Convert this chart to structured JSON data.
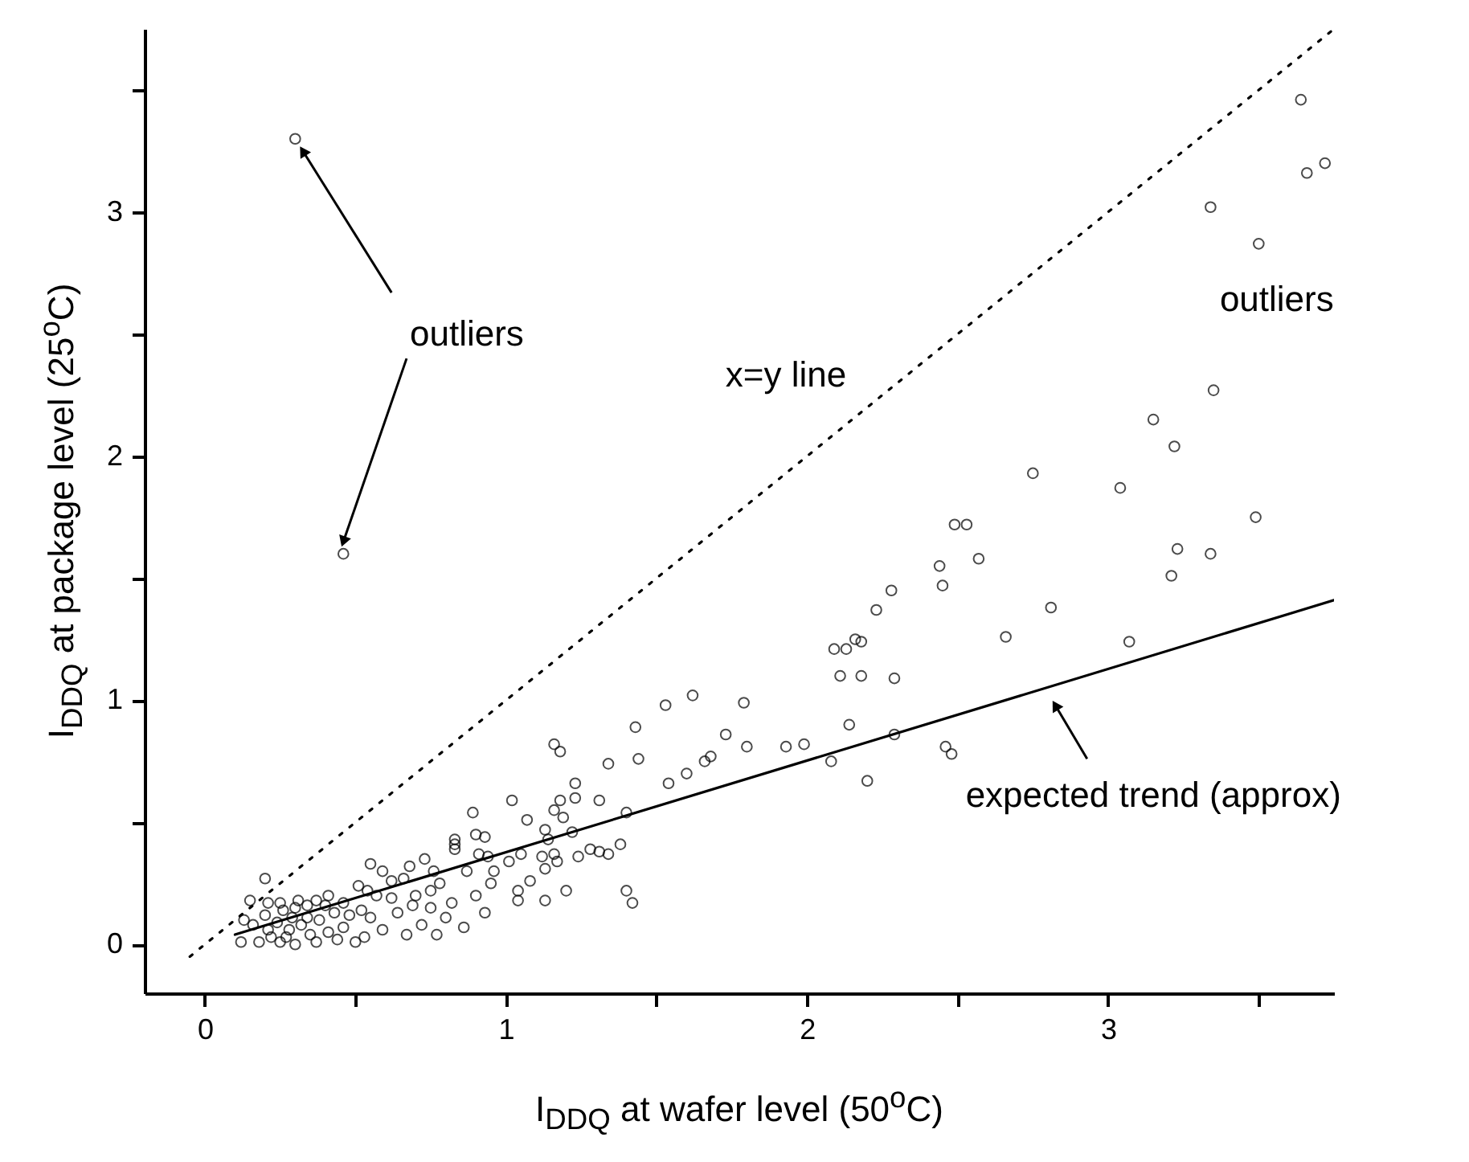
{
  "chart_data": {
    "type": "scatter",
    "xlabel": "I$_{DDQ}$ at wafer level (50$^{o}$C)",
    "ylabel": "I$_{DDQ}$ at package level (25$^{o}$C)",
    "xlim": [
      -0.2,
      3.75
    ],
    "ylim": [
      -0.2,
      3.75
    ],
    "xticks": [
      0,
      {
        "value": 0.5,
        "label": null
      },
      1,
      {
        "value": 1.5,
        "label": null
      },
      2,
      {
        "value": 2.5,
        "label": null
      },
      3,
      {
        "value": 3.5,
        "label": null
      }
    ],
    "yticks": [
      0,
      {
        "value": 0.5,
        "label": null
      },
      1,
      {
        "value": 1.5,
        "label": null
      },
      2,
      {
        "value": 2.5,
        "label": null
      },
      3,
      {
        "value": 3.5,
        "label": null
      }
    ],
    "grid": false,
    "annotations": [
      {
        "text": "outliers",
        "x": 0.3,
        "y": 3.3
      },
      "x=y line",
      "outliers",
      {
        "text": "expected trend (approx)",
        "x": 2.8,
        "y": 1.03
      }
    ],
    "series": [
      {
        "marker": "circle",
        "color": "#000000",
        "x": [
          3.64,
          3.66,
          3.72,
          3.34,
          3.5,
          3.35,
          3.15,
          3.22,
          2.75,
          3.04,
          3.49,
          3.23,
          3.34,
          3.21,
          2.81,
          2.49,
          2.53,
          2.44,
          2.57,
          2.45,
          2.28,
          2.23,
          2.66,
          3.07,
          2.16,
          2.18,
          2.09,
          2.13,
          2.11,
          2.18,
          2.29,
          2.14,
          2.29,
          2.08,
          2.2,
          2.46,
          2.48,
          1.93,
          1.99,
          1.79,
          1.62,
          1.53,
          1.73,
          1.8,
          1.68,
          1.66,
          1.6,
          1.54,
          1.43,
          1.44,
          1.34,
          1.16,
          1.18,
          1.23,
          1.23,
          1.18,
          1.31,
          1.02,
          1.07,
          1.4,
          1.16,
          1.19,
          0.89,
          1.13,
          1.22,
          1.14,
          0.83,
          0.9,
          0.93,
          1.28,
          1.31,
          1.38,
          1.34,
          1.24,
          1.12,
          1.16,
          1.17,
          1.13,
          1.01,
          1.05,
          0.91,
          0.96,
          0.94,
          1.08,
          1.04,
          1.04,
          1.13,
          1.2,
          1.4,
          1.42,
          0.93,
          0.86,
          0.73,
          0.55,
          0.59,
          0.68,
          0.76,
          0.83,
          0.83,
          0.75,
          0.82,
          0.8,
          0.77,
          0.72,
          0.69,
          0.66,
          0.51,
          0.54,
          0.41,
          0.37,
          0.31,
          0.25,
          0.2,
          0.15,
          0.21,
          0.13,
          0.12,
          0.62,
          0.64,
          0.59,
          0.53,
          0.46,
          0.43,
          0.34,
          0.28,
          0.21,
          0.37,
          0.25,
          0.18,
          0.5,
          0.67,
          0.3,
          0.16,
          0.41,
          0.55,
          0.75,
          0.2,
          0.24,
          0.27,
          0.32,
          0.35,
          0.3,
          0.22,
          0.38,
          0.44,
          0.48,
          0.26,
          0.34,
          0.29,
          0.4,
          0.46,
          0.52,
          0.57,
          0.62,
          0.7,
          0.78,
          0.87,
          0.9,
          0.95,
          0.3,
          0.46
        ],
        "values": [
          3.46,
          3.16,
          3.2,
          3.02,
          2.87,
          2.27,
          2.15,
          2.04,
          1.93,
          1.87,
          1.75,
          1.62,
          1.6,
          1.51,
          1.38,
          1.72,
          1.72,
          1.55,
          1.58,
          1.47,
          1.45,
          1.37,
          1.26,
          1.24,
          1.25,
          1.24,
          1.21,
          1.21,
          1.1,
          1.1,
          1.09,
          0.9,
          0.86,
          0.75,
          0.67,
          0.81,
          0.78,
          0.81,
          0.82,
          0.99,
          1.02,
          0.98,
          0.86,
          0.81,
          0.77,
          0.75,
          0.7,
          0.66,
          0.89,
          0.76,
          0.74,
          0.82,
          0.79,
          0.66,
          0.6,
          0.59,
          0.59,
          0.59,
          0.51,
          0.54,
          0.55,
          0.52,
          0.54,
          0.47,
          0.46,
          0.43,
          0.43,
          0.45,
          0.44,
          0.39,
          0.38,
          0.41,
          0.37,
          0.36,
          0.36,
          0.37,
          0.34,
          0.31,
          0.34,
          0.37,
          0.37,
          0.3,
          0.36,
          0.26,
          0.22,
          0.18,
          0.18,
          0.22,
          0.22,
          0.17,
          0.13,
          0.07,
          0.35,
          0.33,
          0.3,
          0.32,
          0.3,
          0.41,
          0.39,
          0.22,
          0.17,
          0.11,
          0.04,
          0.08,
          0.16,
          0.27,
          0.24,
          0.22,
          0.2,
          0.18,
          0.18,
          0.17,
          0.27,
          0.18,
          0.17,
          0.1,
          0.01,
          0.19,
          0.13,
          0.06,
          0.03,
          0.07,
          0.13,
          0.11,
          0.06,
          0.06,
          0.01,
          0.01,
          0.01,
          0.01,
          0.04,
          0.15,
          0.08,
          0.05,
          0.11,
          0.15,
          0.12,
          0.09,
          0.03,
          0.08,
          0.04,
          0.0,
          0.03,
          0.1,
          0.02,
          0.12,
          0.14,
          0.16,
          0.11,
          0.16,
          0.17,
          0.14,
          0.2,
          0.26,
          0.2,
          0.25,
          0.3,
          0.2,
          0.25,
          3.3,
          1.6
        ]
      },
      {
        "type": "line",
        "color": "#000000",
        "line_style": "dotted",
        "marker": "none",
        "x": [
          -0.05,
          3.75
        ],
        "values": [
          -0.05,
          3.75
        ]
      },
      {
        "type": "line",
        "color": "#000000",
        "line_style": "solid",
        "marker": "none",
        "x": [
          0.1,
          3.75
        ],
        "values": [
          0.04,
          1.41
        ]
      }
    ]
  }
}
